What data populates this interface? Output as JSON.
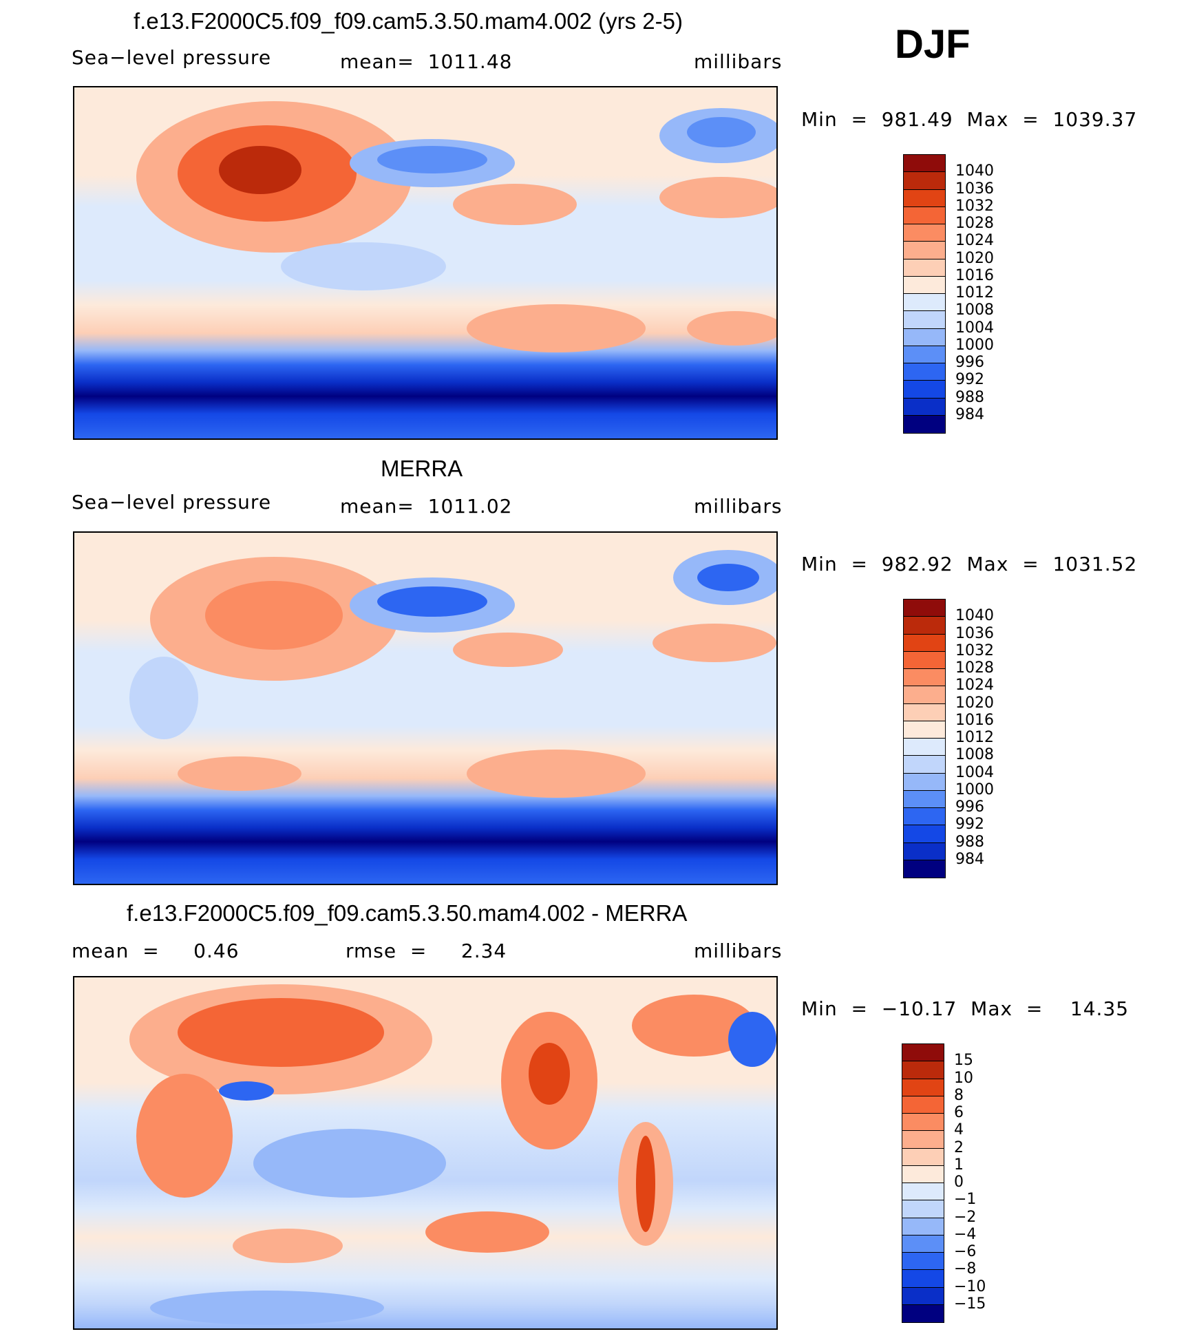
{
  "season": "DJF",
  "colors": {
    "abs": [
      "#000080",
      "#0a2fc8",
      "#1448e6",
      "#2d66f2",
      "#5c8ff7",
      "#96b8f9",
      "#c1d6fb",
      "#ddeafc",
      "#fdeadb",
      "#fdcfb6",
      "#fcae8d",
      "#fb8c62",
      "#f46536",
      "#e14414",
      "#bb2a0b",
      "#8f0c0a"
    ],
    "diff": [
      "#000080",
      "#0a2fc8",
      "#1448e6",
      "#2d66f2",
      "#5c8ff7",
      "#96b8f9",
      "#c1d6fb",
      "#ddeafc",
      "#fdeadb",
      "#fdcfb6",
      "#fcae8d",
      "#fb8c62",
      "#f46536",
      "#e14414",
      "#bb2a0b",
      "#8f0c0a"
    ]
  },
  "panels": [
    {
      "title": "f.e13.F2000C5.f09_f09.cam5.3.50.mam4.002 (yrs 2-5)",
      "left_label": "Sea−level pressure",
      "center_label": "mean=  1011.48",
      "units": "millibars",
      "minmax": "Min  =  981.49  Max  =  1039.37"
    },
    {
      "title": "MERRA",
      "left_label": "Sea−level pressure",
      "center_label": "mean=  1011.02",
      "units": "millibars",
      "minmax": "Min  =  982.92  Max  =  1031.52"
    },
    {
      "title": "f.e13.F2000C5.f09_f09.cam5.3.50.mam4.002 - MERRA",
      "left_label": "mean  =     0.46",
      "center_label": "rmse  =     2.34",
      "units": "millibars",
      "minmax": "Min  =  −10.17  Max  =    14.35"
    }
  ],
  "chart_data": [
    {
      "type": "heatmap",
      "title": "f.e13.F2000C5.f09_f09.cam5.3.50.mam4.002 (yrs 2-5)",
      "variable": "Sea−level pressure",
      "units": "millibars",
      "mean": 1011.48,
      "min": 981.49,
      "max": 1039.37,
      "colorbar_levels": [
        "1040",
        "1036",
        "1032",
        "1028",
        "1024",
        "1020",
        "1016",
        "1012",
        "1008",
        "1004",
        "1000",
        "996",
        "992",
        "988",
        "984"
      ]
    },
    {
      "type": "heatmap",
      "title": "MERRA",
      "variable": "Sea−level pressure",
      "units": "millibars",
      "mean": 1011.02,
      "min": 982.92,
      "max": 1031.52,
      "colorbar_levels": [
        "1040",
        "1036",
        "1032",
        "1028",
        "1024",
        "1020",
        "1016",
        "1012",
        "1008",
        "1004",
        "1000",
        "996",
        "992",
        "988",
        "984"
      ]
    },
    {
      "type": "heatmap",
      "title": "f.e13.F2000C5.f09_f09.cam5.3.50.mam4.002 - MERRA",
      "units": "millibars",
      "mean": 0.46,
      "rmse": 2.34,
      "min": -10.17,
      "max": 14.35,
      "colorbar_levels": [
        "15",
        "10",
        "8",
        "6",
        "4",
        "2",
        "1",
        "0",
        "−1",
        "−2",
        "−4",
        "−6",
        "−8",
        "−10",
        "−15"
      ]
    }
  ]
}
